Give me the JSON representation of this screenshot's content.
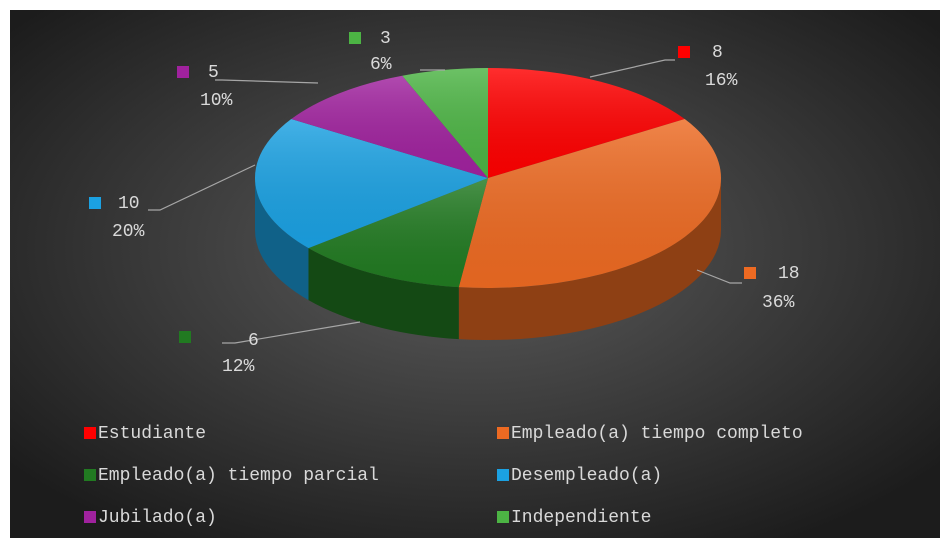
{
  "chart_data": {
    "type": "pie3d",
    "categories": [
      "Estudiante",
      "Empleado(a) tiempo completo",
      "Empleado(a) tiempo parcial",
      "Desempleado(a)",
      "Jubilado(a)",
      "Independiente"
    ],
    "values": [
      8,
      18,
      6,
      10,
      5,
      3
    ],
    "percent_labels": [
      "16%",
      "36%",
      "12%",
      "20%",
      "10%",
      "6%"
    ],
    "colors": [
      "#ff0000",
      "#ed6a22",
      "#217a21",
      "#1ba1e2",
      "#a0229e",
      "#4cb444"
    ],
    "legend": "bottom"
  }
}
